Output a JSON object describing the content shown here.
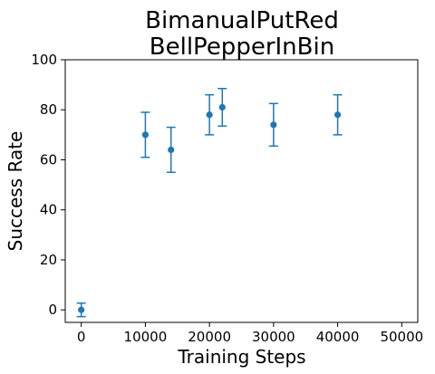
{
  "chart_data": {
    "type": "scatter",
    "title_lines": [
      "BimanualPutRed",
      "BellPepperInBin"
    ],
    "xlabel": "Training Steps",
    "ylabel": "Success Rate",
    "xlim": [
      -2500,
      52500
    ],
    "ylim": [
      -5,
      100
    ],
    "xticks": [
      0,
      10000,
      20000,
      30000,
      40000,
      50000
    ],
    "yticks": [
      0,
      20,
      40,
      60,
      80,
      100
    ],
    "x_tick_labels": [
      "0",
      "10000",
      "20000",
      "30000",
      "40000",
      "50000"
    ],
    "y_tick_labels": [
      "0",
      "20",
      "40",
      "60",
      "80",
      "100"
    ],
    "grid": false,
    "points": [
      {
        "x": 0,
        "y": 0,
        "err": 2.7
      },
      {
        "x": 10000,
        "y": 70,
        "err": 9
      },
      {
        "x": 14000,
        "y": 64,
        "err": 9
      },
      {
        "x": 20000,
        "y": 78,
        "err": 8
      },
      {
        "x": 22000,
        "y": 81,
        "err": 7.5
      },
      {
        "x": 30000,
        "y": 74,
        "err": 8.5
      },
      {
        "x": 40000,
        "y": 78,
        "err": 8
      }
    ],
    "color": "#1f77b4"
  }
}
